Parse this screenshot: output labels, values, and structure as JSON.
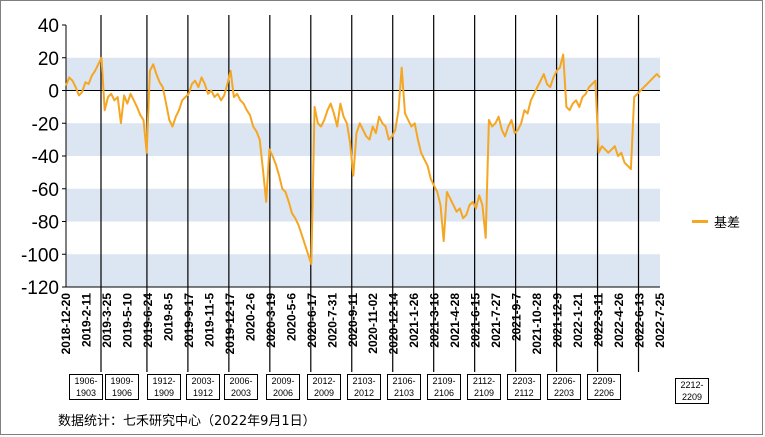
{
  "chart_data": {
    "type": "line",
    "ylim": [
      -120,
      40
    ],
    "yticks": [
      40,
      20,
      0,
      -20,
      -40,
      -60,
      -80,
      -100,
      -120
    ],
    "bands": [
      [
        0,
        20
      ],
      [
        -40,
        -20
      ],
      [
        -80,
        -60
      ],
      [
        -120,
        -100
      ]
    ],
    "legend_position": "right",
    "series": [
      {
        "name": "基差",
        "color": "#f5a623",
        "values": [
          3,
          8,
          6,
          2,
          -3,
          -1,
          5,
          4,
          9,
          12,
          16,
          20,
          -12,
          -4,
          -2,
          -6,
          -4,
          -20,
          -3,
          -8,
          -2,
          -6,
          -10,
          -15,
          -18,
          -38,
          12,
          16,
          10,
          5,
          2,
          -8,
          -18,
          -22,
          -16,
          -12,
          -6,
          -4,
          -2,
          4,
          6,
          2,
          8,
          4,
          -2,
          0,
          -4,
          -2,
          -6,
          -3,
          4,
          12,
          -4,
          -2,
          -6,
          -8,
          -12,
          -15,
          -22,
          -25,
          -30,
          -48,
          -68,
          -36,
          -40,
          -45,
          -52,
          -60,
          -62,
          -68,
          -75,
          -78,
          -82,
          -88,
          -94,
          -100,
          -106,
          -10,
          -20,
          -22,
          -18,
          -12,
          -8,
          -14,
          -22,
          -8,
          -16,
          -20,
          -32,
          -52,
          -26,
          -20,
          -24,
          -28,
          -30,
          -22,
          -26,
          -16,
          -20,
          -22,
          -30,
          -28,
          -24,
          -12,
          14,
          -14,
          -18,
          -22,
          -20,
          -30,
          -38,
          -42,
          -46,
          -54,
          -58,
          -62,
          -70,
          -92,
          -62,
          -66,
          -70,
          -74,
          -72,
          -78,
          -76,
          -70,
          -68,
          -72,
          -64,
          -70,
          -90,
          -18,
          -22,
          -20,
          -16,
          -24,
          -28,
          -22,
          -18,
          -26,
          -24,
          -20,
          -12,
          -14,
          -6,
          -2,
          2,
          6,
          10,
          4,
          2,
          8,
          12,
          14,
          22,
          -10,
          -12,
          -8,
          -6,
          -10,
          -4,
          -2,
          2,
          4,
          6,
          -38,
          -34,
          -36,
          -38,
          -36,
          -34,
          -40,
          -38,
          -44,
          -46,
          -48,
          -4,
          -2,
          0,
          2,
          4,
          6,
          8,
          10,
          8
        ]
      }
    ],
    "x_tick_labels": [
      "2018-12-20",
      "2019-2-11",
      "2019-3-25",
      "2019-5-10",
      "2019-6-24",
      "2019-8-5",
      "2019-9-17",
      "2019-11-5",
      "2019-12-17",
      "2020-2-6",
      "2020-3-19",
      "2020-5-6",
      "2020-6-17",
      "2020-7-31",
      "2020-9-11",
      "2020-11-02",
      "2020-12-14",
      "2021-1-26",
      "2021-3-16",
      "2021-4-28",
      "2021-6-15",
      "2021-7-27",
      "2021-9-7",
      "2021-10-28",
      "2021-12-9",
      "2022-1-21",
      "2022-3-11",
      "2022-4-26",
      "2022-6-13",
      "2022-7-25"
    ],
    "rollover_lines": [
      2,
      4,
      6,
      8,
      10,
      12,
      14,
      16,
      18,
      20,
      22,
      24,
      26,
      28
    ]
  },
  "contracts": [
    "1906-1903",
    "1909-1906",
    "1912-1909",
    "2003-1912",
    "2006-2003",
    "2009-2006",
    "2012-2009",
    "2103-2012",
    "2106-2103",
    "2109-2106",
    "2112-2109",
    "2203-2112",
    "2206-2203",
    "2209-2206",
    "2212-2209"
  ],
  "legend": {
    "label": "基差"
  },
  "source": "数据统计：七禾研究中心（2022年9月1日）"
}
